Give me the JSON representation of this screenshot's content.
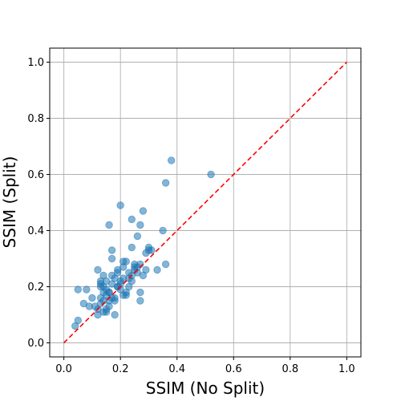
{
  "chart_data": {
    "type": "scatter",
    "xlabel": "SSIM (No Split)",
    "ylabel": "SSIM (Split)",
    "xlim": [
      -0.05,
      1.05
    ],
    "ylim": [
      -0.05,
      1.05
    ],
    "xticks": [
      "0.0",
      "0.2",
      "0.4",
      "0.6",
      "0.8",
      "1.0"
    ],
    "yticks": [
      "0.0",
      "0.2",
      "0.4",
      "0.6",
      "0.8",
      "1.0"
    ],
    "grid": true,
    "point_color": "#1f77b4",
    "reference_line": {
      "from": [
        0,
        0
      ],
      "to": [
        1,
        1
      ],
      "color": "#ff0000",
      "style": "dashed"
    },
    "series": [
      {
        "x": [
          0.38,
          0.52,
          0.36,
          0.2,
          0.24,
          0.28,
          0.27,
          0.16,
          0.26,
          0.35,
          0.17,
          0.24,
          0.17,
          0.21,
          0.22,
          0.25,
          0.3,
          0.31,
          0.36,
          0.26,
          0.27,
          0.29,
          0.29,
          0.33,
          0.12,
          0.19,
          0.23,
          0.25,
          0.26,
          0.28,
          0.14,
          0.15,
          0.21,
          0.13,
          0.2,
          0.24,
          0.17,
          0.19,
          0.05,
          0.08,
          0.14,
          0.15,
          0.16,
          0.2,
          0.22,
          0.1,
          0.13,
          0.17,
          0.21,
          0.22,
          0.27,
          0.14,
          0.16,
          0.18,
          0.07,
          0.09,
          0.11,
          0.16,
          0.27,
          0.12,
          0.14,
          0.15,
          0.12,
          0.18,
          0.13,
          0.15,
          0.05,
          0.04,
          0.19,
          0.23,
          0.24,
          0.18,
          0.2,
          0.16,
          0.15,
          0.14,
          0.13,
          0.21,
          0.3,
          0.23,
          0.25,
          0.18,
          0.13,
          0.17,
          0.19
        ],
        "y": [
          0.65,
          0.6,
          0.57,
          0.49,
          0.44,
          0.47,
          0.42,
          0.42,
          0.38,
          0.4,
          0.33,
          0.34,
          0.3,
          0.29,
          0.29,
          0.28,
          0.34,
          0.33,
          0.28,
          0.27,
          0.28,
          0.26,
          0.32,
          0.26,
          0.26,
          0.26,
          0.25,
          0.26,
          0.25,
          0.24,
          0.24,
          0.22,
          0.23,
          0.21,
          0.22,
          0.22,
          0.21,
          0.2,
          0.19,
          0.19,
          0.2,
          0.19,
          0.18,
          0.19,
          0.18,
          0.16,
          0.16,
          0.16,
          0.17,
          0.17,
          0.18,
          0.15,
          0.15,
          0.15,
          0.14,
          0.13,
          0.13,
          0.13,
          0.15,
          0.12,
          0.11,
          0.11,
          0.1,
          0.1,
          0.14,
          0.17,
          0.08,
          0.06,
          0.2,
          0.2,
          0.24,
          0.23,
          0.21,
          0.18,
          0.12,
          0.18,
          0.22,
          0.27,
          0.33,
          0.23,
          0.27,
          0.16,
          0.2,
          0.24,
          0.25
        ]
      }
    ]
  }
}
